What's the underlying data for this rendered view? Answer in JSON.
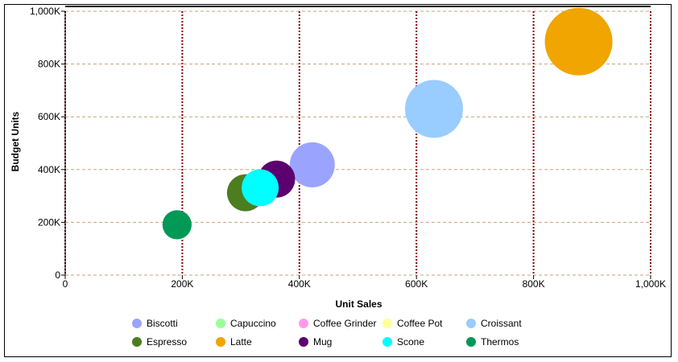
{
  "chart_data": {
    "type": "scatter",
    "bubble": true,
    "xlabel": "Unit Sales",
    "ylabel": "Budget Units",
    "xlim": [
      0,
      1000000
    ],
    "ylim": [
      0,
      1000000
    ],
    "x_ticks": [
      {
        "value": 0,
        "label": "0"
      },
      {
        "value": 200000,
        "label": "200K"
      },
      {
        "value": 400000,
        "label": "400K"
      },
      {
        "value": 600000,
        "label": "600K"
      },
      {
        "value": 800000,
        "label": "800K"
      },
      {
        "value": 1000000,
        "label": "1,000K"
      }
    ],
    "y_ticks": [
      {
        "value": 0,
        "label": "0"
      },
      {
        "value": 200000,
        "label": "200K"
      },
      {
        "value": 400000,
        "label": "400K"
      },
      {
        "value": 600000,
        "label": "600K"
      },
      {
        "value": 800000,
        "label": "800K"
      },
      {
        "value": 1000000,
        "label": "1,000K"
      }
    ],
    "grid": true,
    "legend_position": "bottom",
    "series": [
      {
        "name": "Biscotti",
        "color": "#9aa4ff",
        "x": 422000,
        "y": 418000,
        "size": 28
      },
      {
        "name": "Capuccino",
        "color": "#99ff99",
        "x": 187000,
        "y": 183000,
        "size": 12
      },
      {
        "name": "Coffee Grinder",
        "color": "#ff99ee",
        "x": 186000,
        "y": 184000,
        "size": 13
      },
      {
        "name": "Coffee Pot",
        "color": "#ffff99",
        "x": 186000,
        "y": 183000,
        "size": 10
      },
      {
        "name": "Croissant",
        "color": "#99ccff",
        "x": 630000,
        "y": 630000,
        "size": 36
      },
      {
        "name": "Espresso",
        "color": "#4c7d1f",
        "x": 308000,
        "y": 312000,
        "size": 23
      },
      {
        "name": "Latte",
        "color": "#f0a500",
        "x": 877000,
        "y": 885000,
        "size": 42
      },
      {
        "name": "Mug",
        "color": "#5c0070",
        "x": 361000,
        "y": 364000,
        "size": 23
      },
      {
        "name": "Scone",
        "color": "#00ffff",
        "x": 333000,
        "y": 331000,
        "size": 23
      },
      {
        "name": "Thermos",
        "color": "#009955",
        "x": 191000,
        "y": 191000,
        "size": 18
      }
    ]
  },
  "colors": {
    "grid_vertical": "#8b0000",
    "grid_horizontal": "#c8a27a"
  }
}
